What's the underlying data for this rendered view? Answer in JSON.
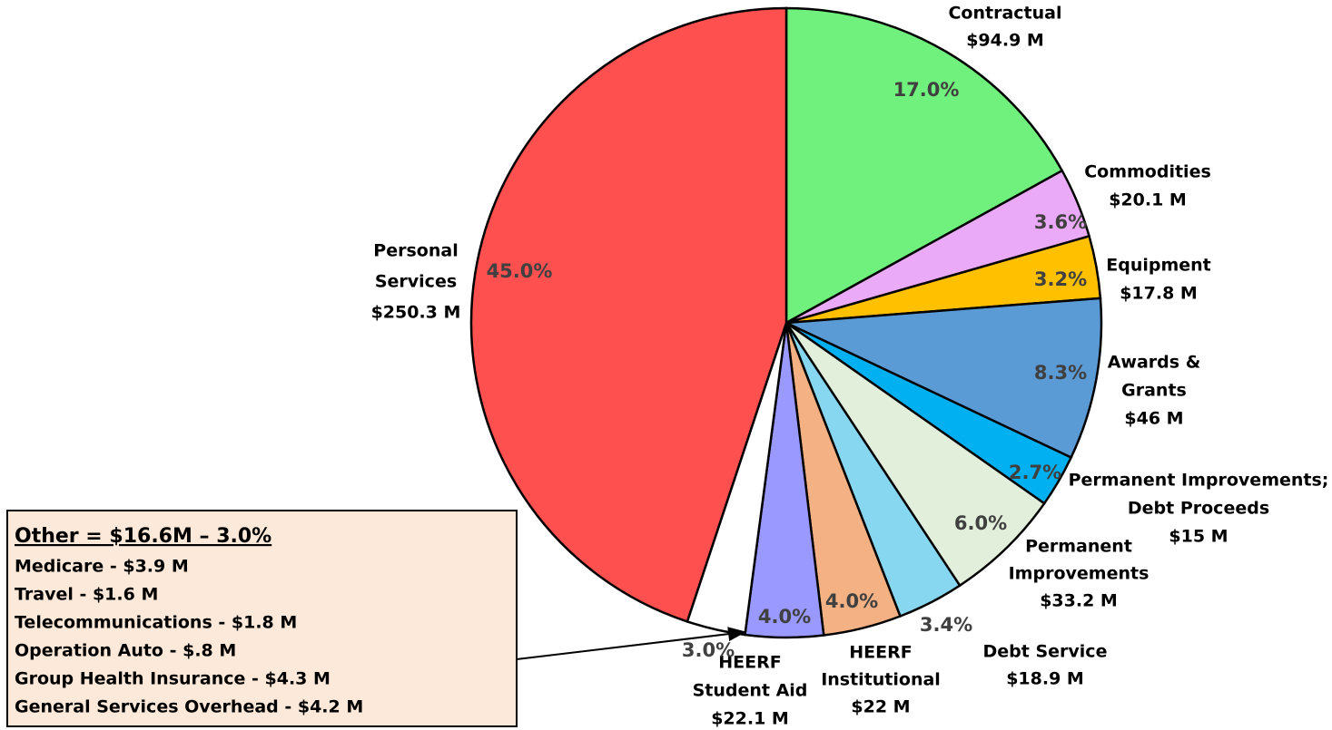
{
  "chart_data": {
    "type": "pie",
    "categories": [
      [
        "Contractual"
      ],
      [
        "Commodities"
      ],
      [
        "Equipment"
      ],
      [
        "Awards &",
        "Grants"
      ],
      [
        "Permanent Improvements;",
        "Debt Proceeds"
      ],
      [
        "Permanent",
        "Improvements"
      ],
      [
        "Debt Service"
      ],
      [
        "HEERF",
        "Institutional"
      ],
      [
        "HEERF",
        "Student Aid"
      ],
      null,
      [
        "Personal",
        "Services"
      ]
    ],
    "amounts": [
      "$94.9 M",
      "$20.1 M",
      "$17.8 M",
      "$46 M",
      "$15 M",
      "$33.2 M",
      "$18.9 M",
      "$22 M",
      "$22.1 M",
      null,
      "$250.3 M"
    ],
    "values": [
      17.0,
      3.6,
      3.2,
      8.3,
      2.7,
      6.0,
      3.4,
      4.0,
      4.0,
      3.0,
      45.0
    ],
    "value_labels": [
      "17.0%",
      "3.6%",
      "3.2%",
      "8.3%",
      "2.7%",
      "6.0%",
      "3.4%",
      "4.0%",
      "4.0%",
      "3.0%",
      "45.0%"
    ],
    "colors": [
      "#70f07c",
      "#eaaaf7",
      "#ffc000",
      "#5b9bd5",
      "#00b0f0",
      "#e2efda",
      "#87d7f0",
      "#f4b183",
      "#9999ff",
      "#ffffff",
      "#ff5050"
    ],
    "other_box": {
      "title": "Other = $16.6M – 3.0%",
      "items": [
        "Medicare - $3.9 M",
        "Travel - $1.6 M",
        "Telecommunications - $1.8 M",
        "Operation Auto - $.8 M",
        "Group Health Insurance - $4.3 M",
        "General Services Overhead - $4.2 M"
      ]
    }
  }
}
